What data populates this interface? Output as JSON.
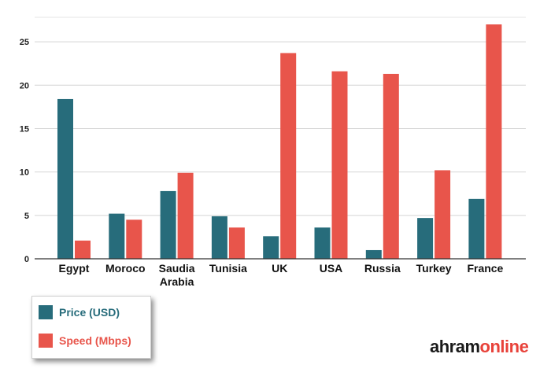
{
  "chart_data": {
    "type": "bar",
    "categories": [
      "Egypt",
      "Moroco",
      "Saudia Arabia",
      "Tunisia",
      "UK",
      "USA",
      "Russia",
      "Turkey",
      "France"
    ],
    "series": [
      {
        "name": "Price (USD)",
        "color": "#276c7b",
        "values": [
          18.4,
          5.2,
          7.8,
          4.9,
          2.6,
          3.6,
          1.0,
          4.7,
          6.9
        ]
      },
      {
        "name": "Speed (Mbps)",
        "color": "#e8554b",
        "values": [
          2.1,
          4.5,
          9.9,
          3.6,
          23.7,
          21.6,
          21.3,
          10.2,
          27.0
        ]
      }
    ],
    "ylim": [
      0,
      28
    ],
    "yticks": [
      "0",
      "5",
      "10",
      "15",
      "20",
      "25"
    ],
    "grid": true,
    "legend_position": "bottom-left"
  },
  "legend": {
    "items": [
      {
        "label": "Price (USD)",
        "color": "#276c7b"
      },
      {
        "label": "Speed (Mbps)",
        "color": "#e8554b"
      }
    ]
  },
  "branding": {
    "logo_part1": "ahram",
    "logo_part2": "online"
  }
}
